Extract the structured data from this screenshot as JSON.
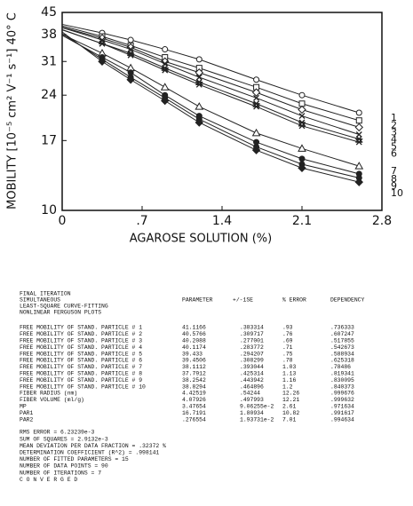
{
  "chart_data": {
    "type": "line",
    "y_label": "MOBILITY [10⁻⁵ cm² V⁻¹ s⁻¹] 40° C",
    "x_label": "AGAROSE SOLUTION (%)",
    "x": [
      0,
      0.35,
      0.6,
      0.9,
      1.2,
      1.7,
      2.1,
      2.6
    ],
    "xlim": [
      0,
      2.8
    ],
    "xticks": [
      0,
      {
        "value": 0.7,
        "label": ".7"
      },
      1.4,
      2.1,
      2.8
    ],
    "ylim": [
      10,
      45
    ],
    "yticks": [
      10,
      17,
      24,
      31,
      38,
      45
    ],
    "log_y": true,
    "series": [
      {
        "name": "1",
        "color": "#222",
        "marker": "circle",
        "values": [
          41.1,
          38.5,
          36.5,
          34,
          31.5,
          27,
          24,
          21
        ]
      },
      {
        "name": "2",
        "color": "#222",
        "marker": "square",
        "values": [
          40.6,
          37.5,
          35,
          32,
          29.5,
          25.5,
          22.5,
          19.8
        ]
      },
      {
        "name": "3",
        "color": "#222",
        "marker": "diamond",
        "values": [
          40.2,
          37,
          34.5,
          31,
          28.5,
          24.5,
          21.5,
          18.8
        ]
      },
      {
        "name": "4",
        "color": "#222",
        "marker": "cross",
        "values": [
          40.1,
          36.5,
          34,
          30.5,
          27.5,
          23.5,
          20.5,
          17.8
        ]
      },
      {
        "name": "5",
        "color": "#222",
        "marker": "star",
        "values": [
          39.4,
          35.5,
          33,
          29.5,
          26.5,
          22.5,
          19.5,
          17.2
        ]
      },
      {
        "name": "6",
        "color": "#222",
        "marker": "star",
        "values": [
          39.5,
          35.5,
          32.5,
          29,
          26,
          22,
          19,
          16.8
        ]
      },
      {
        "name": "7",
        "color": "#222",
        "marker": "triangle",
        "values": [
          38.1,
          33,
          29.5,
          25.5,
          22,
          18,
          16,
          14
        ]
      },
      {
        "name": "8",
        "color": "#222",
        "marker": "dot",
        "values": [
          37.8,
          32,
          28.5,
          24,
          20.5,
          16.8,
          14.8,
          13.2
        ]
      },
      {
        "name": "9",
        "color": "#222",
        "marker": "dot",
        "values": [
          38.3,
          31.5,
          27.5,
          23.5,
          20,
          16.2,
          14.2,
          12.8
        ]
      },
      {
        "name": "10",
        "color": "#222",
        "marker": "diamond-filled",
        "values": [
          38.8,
          31,
          27,
          23,
          19.5,
          15.8,
          13.8,
          12.4
        ]
      }
    ]
  },
  "report": {
    "heading": [
      "FINAL ITERATION",
      "SIMULTANEOUS",
      "LEAST-SQUARE CURVE-FITTING",
      "NONLINEAR FERGUSON PLOTS"
    ],
    "columns": [
      "PARAMETER",
      "+/-1SE",
      "% ERROR",
      "DEPENDENCY"
    ],
    "rows": [
      [
        "FREE MOBILITY OF STAND. PARTICLE # 1",
        "41.1166",
        ".383314",
        ".93",
        ".736333"
      ],
      [
        "FREE MOBILITY OF STAND. PARTICLE # 2",
        "40.5766",
        ".309717",
        ".76",
        ".607247"
      ],
      [
        "FREE MOBILITY OF STAND. PARTICLE # 3",
        "40.2088",
        ".277001",
        ".69",
        ".517855"
      ],
      [
        "FREE MOBILITY OF STAND. PARTICLE # 4",
        "40.1174",
        ".283772",
        ".71",
        ".542673"
      ],
      [
        "FREE MOBILITY OF STAND. PARTICLE # 5",
        "39.433",
        ".294207",
        ".75",
        ".588934"
      ],
      [
        "FREE MOBILITY OF STAND. PARTICLE # 6",
        "39.4506",
        ".308299",
        ".78",
        ".625318"
      ],
      [
        "FREE MOBILITY OF STAND. PARTICLE # 7",
        "38.1112",
        ".393044",
        "1.03",
        ".78486"
      ],
      [
        "FREE MOBILITY OF STAND. PARTICLE # 8",
        "37.7912",
        ".425314",
        "1.13",
        ".819341"
      ],
      [
        "FREE MOBILITY OF STAND. PARTICLE # 9",
        "38.2542",
        ".443942",
        "1.16",
        ".830095"
      ],
      [
        "FREE MOBILITY OF STAND. PARTICLE # 10",
        "38.8294",
        ".464896",
        "1.2",
        ".840373"
      ],
      [
        "FIBER RADIUS (nm)",
        "4.42519",
        ".54244",
        "12.26",
        ".999676"
      ],
      [
        "FIBER VOLUME (ml/g)",
        "4.07926",
        ".497993",
        "12.21",
        ".999632"
      ],
      [
        "MP",
        "3.47654",
        "9.06255e-2",
        "2.61",
        ".971634"
      ],
      [
        "PAR1",
        "16.7191",
        "1.80934",
        "10.82",
        ".991617"
      ],
      [
        "PAR2",
        ".276554",
        "1.93731e-2",
        "7.01",
        ".994634"
      ]
    ],
    "summary": [
      "RMS ERROR =  6.23239e-3",
      "SUM OF SQUARES =  2.9132e-3",
      "MEAN DEVIATION PER DATA FRACTION =  .32372 %",
      "DETERMINATION COEFFICIENT (R^2) =  .998141",
      "NUMBER OF FITTED PARAMETERS =  15",
      "NUMBER OF DATA POINTS =  90",
      "NUMBER OF ITERATIONS =  7",
      "C O N V E R G E D"
    ]
  }
}
